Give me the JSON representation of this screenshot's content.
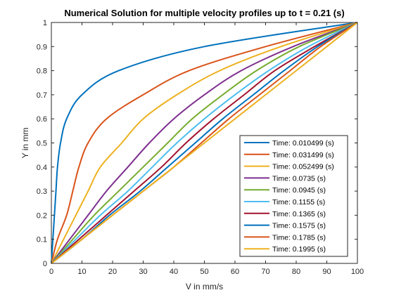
{
  "chart_data": {
    "type": "line",
    "title": "Numerical Solution for multiple velocity profiles up to t = 0.21 (s)",
    "xlabel": "V in mm/s",
    "ylabel": "Y in mm",
    "xlim": [
      0,
      100
    ],
    "ylim": [
      0,
      1
    ],
    "xticks": [
      "0",
      "10",
      "20",
      "30",
      "40",
      "50",
      "60",
      "70",
      "80",
      "90",
      "100"
    ],
    "yticks": [
      "0",
      "0.1",
      "0.2",
      "0.3",
      "0.4",
      "0.5",
      "0.6",
      "0.7",
      "0.8",
      "0.9",
      "1"
    ],
    "grid": false,
    "legend_position": "lower-right",
    "series": [
      {
        "name": "Time: 0.010499 (s)",
        "color": "#0072BD",
        "points": [
          [
            0,
            0
          ],
          [
            0.5,
            0.1
          ],
          [
            1,
            0.2
          ],
          [
            1.5,
            0.3
          ],
          [
            2,
            0.4
          ],
          [
            3,
            0.5
          ],
          [
            5,
            0.6
          ],
          [
            10,
            0.7
          ],
          [
            22,
            0.8
          ],
          [
            50,
            0.9
          ],
          [
            100,
            1
          ]
        ]
      },
      {
        "name": "Time: 0.031499 (s)",
        "color": "#D95319",
        "points": [
          [
            0,
            0
          ],
          [
            2,
            0.1
          ],
          [
            5,
            0.2
          ],
          [
            7,
            0.3
          ],
          [
            9,
            0.4
          ],
          [
            12,
            0.5
          ],
          [
            18,
            0.6
          ],
          [
            30,
            0.7
          ],
          [
            45,
            0.8
          ],
          [
            70,
            0.9
          ],
          [
            100,
            1
          ]
        ]
      },
      {
        "name": "Time: 0.052499 (s)",
        "color": "#EDB120",
        "points": [
          [
            0,
            0
          ],
          [
            4,
            0.1
          ],
          [
            8,
            0.2
          ],
          [
            12,
            0.3
          ],
          [
            16,
            0.4
          ],
          [
            23,
            0.5
          ],
          [
            30,
            0.6
          ],
          [
            41,
            0.7
          ],
          [
            55,
            0.8
          ],
          [
            75,
            0.9
          ],
          [
            100,
            1
          ]
        ]
      },
      {
        "name": "Time: 0.0735 (s)",
        "color": "#7E2F8E",
        "points": [
          [
            0,
            0
          ],
          [
            6,
            0.1
          ],
          [
            12,
            0.2
          ],
          [
            18,
            0.3
          ],
          [
            25,
            0.4
          ],
          [
            32,
            0.5
          ],
          [
            40,
            0.6
          ],
          [
            50,
            0.7
          ],
          [
            62,
            0.8
          ],
          [
            79,
            0.9
          ],
          [
            100,
            1
          ]
        ]
      },
      {
        "name": "Time: 0.0945 (s)",
        "color": "#77AC30",
        "points": [
          [
            0,
            0
          ],
          [
            7,
            0.1
          ],
          [
            14,
            0.2
          ],
          [
            22,
            0.3
          ],
          [
            30,
            0.4
          ],
          [
            38,
            0.5
          ],
          [
            46,
            0.6
          ],
          [
            56,
            0.7
          ],
          [
            67,
            0.8
          ],
          [
            81,
            0.9
          ],
          [
            100,
            1
          ]
        ]
      },
      {
        "name": "Time: 0.1155 (s)",
        "color": "#4DBEEE",
        "points": [
          [
            0,
            0
          ],
          [
            8,
            0.1
          ],
          [
            16,
            0.2
          ],
          [
            25,
            0.3
          ],
          [
            33,
            0.4
          ],
          [
            41,
            0.5
          ],
          [
            50,
            0.6
          ],
          [
            60,
            0.7
          ],
          [
            71,
            0.8
          ],
          [
            84,
            0.9
          ],
          [
            100,
            1
          ]
        ]
      },
      {
        "name": "Time: 0.1365 (s)",
        "color": "#A2142F",
        "points": [
          [
            0,
            0
          ],
          [
            9,
            0.1
          ],
          [
            18,
            0.2
          ],
          [
            27,
            0.3
          ],
          [
            36,
            0.4
          ],
          [
            44,
            0.5
          ],
          [
            53,
            0.6
          ],
          [
            63,
            0.7
          ],
          [
            73,
            0.8
          ],
          [
            86,
            0.9
          ],
          [
            100,
            1
          ]
        ]
      },
      {
        "name": "Time: 0.1575 (s)",
        "color": "#0072BD",
        "points": [
          [
            0,
            0
          ],
          [
            10,
            0.1
          ],
          [
            19,
            0.2
          ],
          [
            29,
            0.3
          ],
          [
            38,
            0.4
          ],
          [
            47,
            0.5
          ],
          [
            56,
            0.6
          ],
          [
            66,
            0.7
          ],
          [
            76,
            0.8
          ],
          [
            87,
            0.9
          ],
          [
            100,
            1
          ]
        ]
      },
      {
        "name": "Time: 0.1785 (s)",
        "color": "#D95319",
        "points": [
          [
            0,
            0
          ],
          [
            10,
            0.1
          ],
          [
            20,
            0.2
          ],
          [
            30,
            0.3
          ],
          [
            40,
            0.4
          ],
          [
            49,
            0.5
          ],
          [
            58,
            0.6
          ],
          [
            68,
            0.7
          ],
          [
            78,
            0.8
          ],
          [
            88,
            0.9
          ],
          [
            100,
            1
          ]
        ]
      },
      {
        "name": "Time: 0.1995 (s)",
        "color": "#EDB120",
        "points": [
          [
            0,
            0
          ],
          [
            10,
            0.1
          ],
          [
            20,
            0.2
          ],
          [
            30,
            0.3
          ],
          [
            40,
            0.4
          ],
          [
            50,
            0.5
          ],
          [
            60,
            0.6
          ],
          [
            70,
            0.7
          ],
          [
            80,
            0.8
          ],
          [
            90,
            0.9
          ],
          [
            100,
            1
          ]
        ]
      }
    ]
  }
}
